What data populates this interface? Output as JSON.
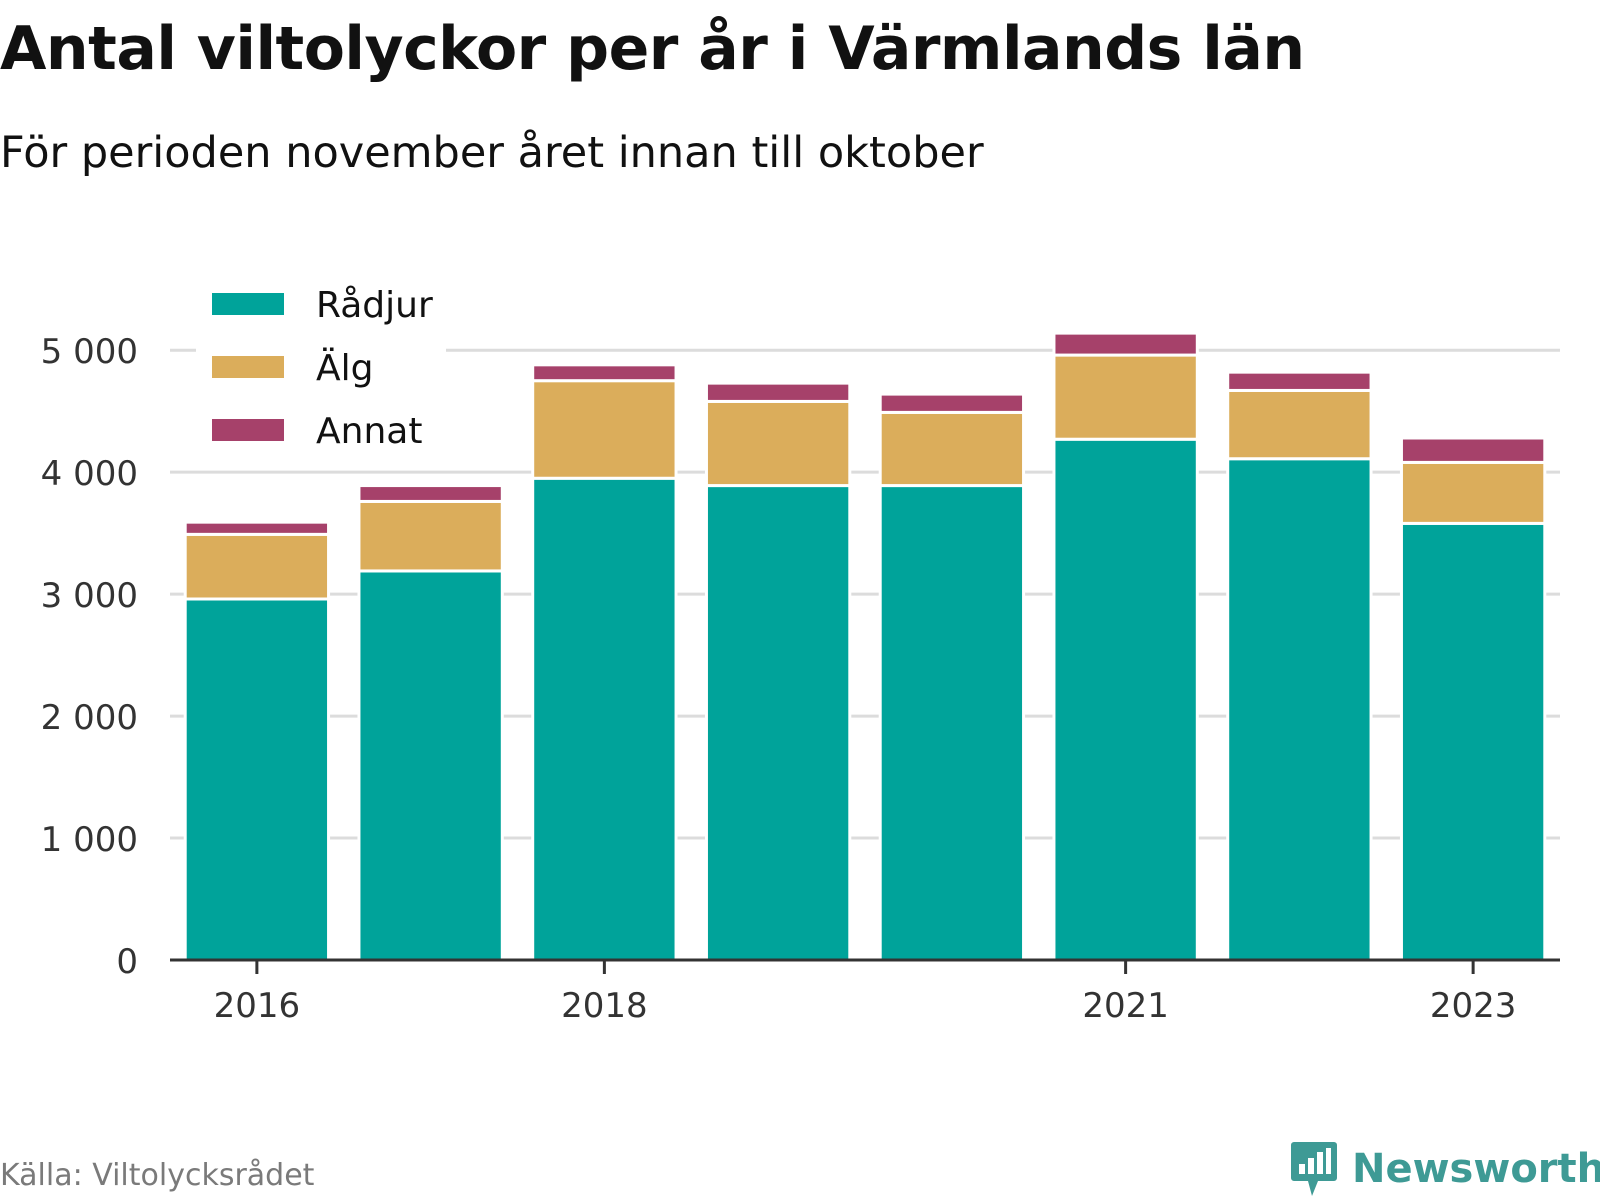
{
  "title": "Antal viltolyckor per år i Värmlands län",
  "subtitle": "För perioden november året innan till oktober",
  "source": "Källa: Viltolycksrådet",
  "brand": {
    "name": "Newsworthy",
    "color": "#3e9a95",
    "icon": "bar-chart-speech-bubble-icon"
  },
  "chart_data": {
    "type": "bar",
    "stacked": true,
    "categories": [
      "2016",
      "2017",
      "2018",
      "2019",
      "2020",
      "2021",
      "2022",
      "2023"
    ],
    "x_tick_labels": [
      "2016",
      "2018",
      "2021",
      "2023"
    ],
    "y_ticks": [
      "0",
      "1 000",
      "2 000",
      "3 000",
      "4 000",
      "5 000"
    ],
    "ylim": [
      0,
      5100
    ],
    "grid": true,
    "legend_position": "top-left",
    "series": [
      {
        "name": "Rådjur",
        "color": "#00a39a",
        "values": [
          2960,
          3190,
          3950,
          3890,
          3890,
          4270,
          4110,
          3580
        ]
      },
      {
        "name": "Älg",
        "color": "#dbad5b",
        "values": [
          530,
          570,
          800,
          690,
          600,
          690,
          560,
          500
        ]
      },
      {
        "name": "Annat",
        "color": "#a6416a",
        "values": [
          100,
          130,
          130,
          150,
          150,
          180,
          150,
          200
        ]
      }
    ]
  }
}
